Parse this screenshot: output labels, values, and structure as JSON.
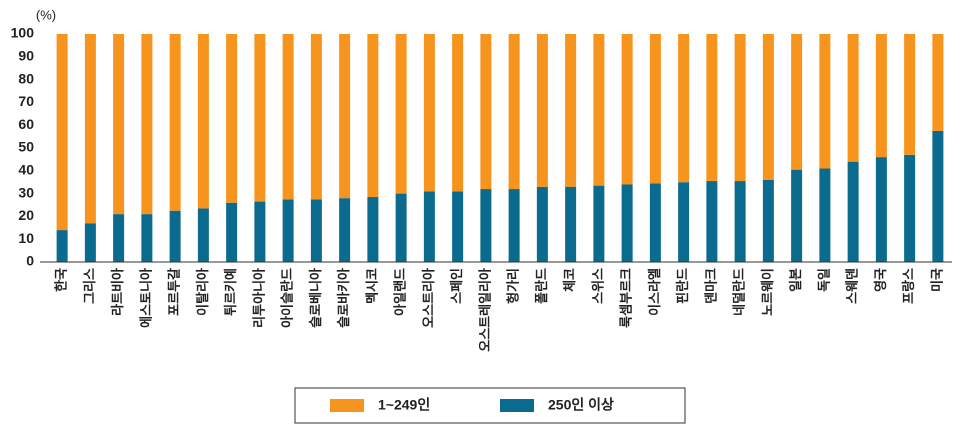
{
  "chart_data": {
    "type": "stacked_bar",
    "y_label": "(%)",
    "categories": [
      "한국",
      "그리스",
      "라트비아",
      "에스토니아",
      "포르투갈",
      "이탈리아",
      "튀르키예",
      "리투아니아",
      "아이슬란드",
      "슬로베니아",
      "슬로바키아",
      "멕시코",
      "아일랜드",
      "오스트리아",
      "스페인",
      "오스트레일리아",
      "헝가리",
      "폴란드",
      "체코",
      "스위스",
      "룩셈부르크",
      "이스라엘",
      "핀란드",
      "덴마크",
      "네덜란드",
      "노르웨이",
      "일본",
      "독일",
      "스웨덴",
      "영국",
      "프랑스",
      "미국"
    ],
    "series": [
      {
        "name": "1~249인",
        "color": "#f7941d",
        "values": [
          86,
          83,
          79,
          79,
          77.5,
          76.5,
          74,
          73.5,
          72.5,
          72.5,
          72,
          71.5,
          70,
          69,
          69,
          68,
          68,
          67,
          67,
          66.5,
          66,
          65.5,
          65,
          64.5,
          64.5,
          64,
          59.5,
          59,
          56,
          54,
          53,
          42.5
        ]
      },
      {
        "name": "250인 이상",
        "color": "#0a6b8e",
        "values": [
          14,
          17,
          21,
          21,
          22.5,
          23.5,
          26,
          26.5,
          27.5,
          27.5,
          28,
          28.5,
          30,
          31,
          31,
          32,
          32,
          33,
          33,
          33.5,
          34,
          34.5,
          35,
          35.5,
          35.5,
          36,
          40.5,
          41,
          44,
          46,
          47,
          57.5
        ]
      }
    ],
    "ylim": [
      0,
      100
    ],
    "yticks": [
      0,
      10,
      20,
      30,
      40,
      50,
      60,
      70,
      80,
      90,
      100
    ],
    "grid": false
  }
}
